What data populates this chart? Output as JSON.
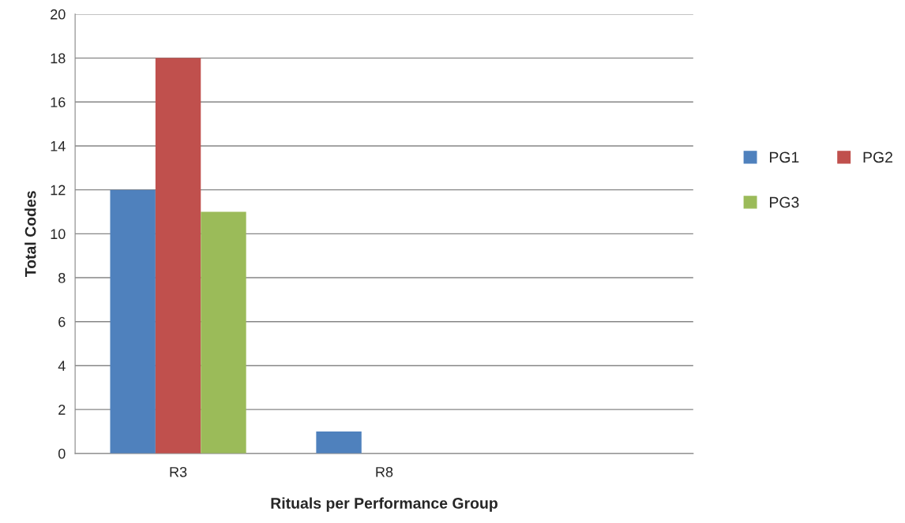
{
  "chart_data": {
    "type": "bar",
    "xlabel": "Rituals per Performance Group",
    "ylabel": "Total Codes",
    "categories": [
      "R3",
      "R8",
      null
    ],
    "series": [
      {
        "name": "PG1",
        "color": "#4f81bd",
        "values": [
          12,
          1,
          null
        ]
      },
      {
        "name": "PG2",
        "color": "#c0504d",
        "values": [
          18,
          null,
          null
        ]
      },
      {
        "name": "PG3",
        "color": "#9bbb59",
        "values": [
          11,
          null,
          null
        ]
      }
    ],
    "ylim": [
      0,
      20
    ],
    "yticks": [
      0,
      2,
      4,
      6,
      8,
      10,
      12,
      14,
      16,
      18,
      20
    ],
    "grid": "y",
    "legend": "right"
  }
}
